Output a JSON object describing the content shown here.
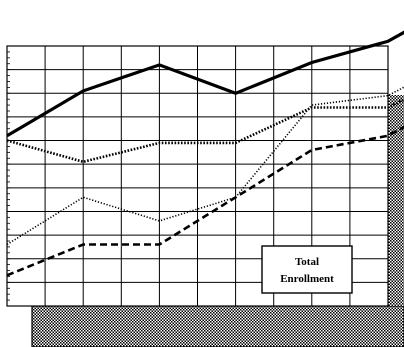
{
  "chart_data": {
    "type": "line",
    "grid": true,
    "legend": {
      "placement": "bottom-right",
      "lines": [
        "Total",
        "Enrollment"
      ]
    },
    "x": [
      0,
      1,
      2,
      3,
      4,
      5,
      6
    ],
    "ylim": [
      0,
      11
    ],
    "series": [
      {
        "values": [
          7.2,
          9.1,
          10.2,
          9.0,
          10.3,
          11.2,
          13.0
        ],
        "style": "solid",
        "stroke": "#000000"
      },
      {
        "values": [
          7.0,
          6.1,
          6.9,
          6.9,
          8.4,
          8.4,
          10.0
        ],
        "style": "dotted",
        "stroke": "#000000"
      },
      {
        "values": [
          2.6,
          4.6,
          3.6,
          4.6,
          8.5,
          8.9,
          10.6
        ],
        "style": "fine-dotted",
        "stroke": "#000000"
      },
      {
        "values": [
          1.3,
          2.6,
          2.6,
          4.6,
          6.6,
          7.2,
          9.0
        ],
        "style": "dashed",
        "stroke": "#000000"
      }
    ]
  }
}
